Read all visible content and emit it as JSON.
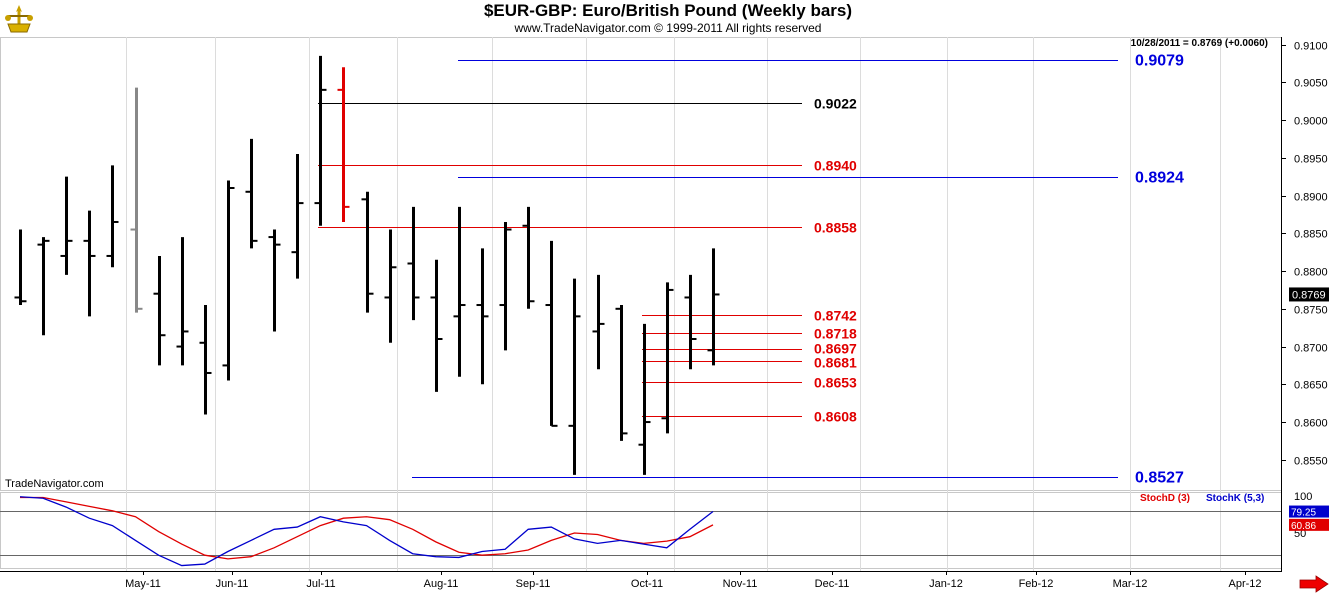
{
  "header": {
    "title": "$EUR-GBP:  Euro/British Pound  (Weekly bars)",
    "subtitle": "www.TradeNavigator.com © 1999-2011 All rights reserved",
    "quote": "10/28/2011 = 0.8769 (+0.0060)",
    "watermark": "TradeNavigator.com"
  },
  "chart_data": [
    {
      "type": "ohlc",
      "title": "$EUR-GBP:  Euro/British Pound  (Weekly bars)",
      "ylim": [
        0.851,
        0.911
      ],
      "y_ticks": [
        0.91,
        0.905,
        0.9,
        0.895,
        0.89,
        0.885,
        0.88,
        0.875,
        0.87,
        0.865,
        0.86,
        0.855
      ],
      "x_months": [
        "May-11",
        "Jun-11",
        "Jul-11",
        "Aug-11",
        "Sep-11",
        "Oct-11",
        "Nov-11",
        "Dec-11",
        "Jan-12",
        "Feb-12",
        "Mar-12",
        "Apr-12"
      ],
      "last_value": "0.8769",
      "bars": [
        {
          "o": 0.8765,
          "h": 0.8855,
          "l": 0.8755,
          "c": 0.876,
          "color": "#000000"
        },
        {
          "o": 0.8835,
          "h": 0.8845,
          "l": 0.8715,
          "c": 0.884,
          "color": "#000000"
        },
        {
          "o": 0.882,
          "h": 0.8925,
          "l": 0.8795,
          "c": 0.884,
          "color": "#000000"
        },
        {
          "o": 0.884,
          "h": 0.888,
          "l": 0.874,
          "c": 0.882,
          "color": "#000000"
        },
        {
          "o": 0.882,
          "h": 0.894,
          "l": 0.8805,
          "c": 0.8865,
          "color": "#000000"
        },
        {
          "o": 0.8855,
          "h": 0.9043,
          "l": 0.8745,
          "c": 0.875,
          "color": "#888888"
        },
        {
          "o": 0.877,
          "h": 0.882,
          "l": 0.8675,
          "c": 0.8715,
          "color": "#000000"
        },
        {
          "o": 0.87,
          "h": 0.8845,
          "l": 0.8675,
          "c": 0.872,
          "color": "#000000"
        },
        {
          "o": 0.8705,
          "h": 0.8755,
          "l": 0.861,
          "c": 0.8665,
          "color": "#000000"
        },
        {
          "o": 0.8675,
          "h": 0.892,
          "l": 0.8655,
          "c": 0.891,
          "color": "#000000"
        },
        {
          "o": 0.8905,
          "h": 0.8975,
          "l": 0.883,
          "c": 0.884,
          "color": "#000000"
        },
        {
          "o": 0.8845,
          "h": 0.8855,
          "l": 0.872,
          "c": 0.8835,
          "color": "#000000"
        },
        {
          "o": 0.8825,
          "h": 0.8955,
          "l": 0.879,
          "c": 0.889,
          "color": "#000000"
        },
        {
          "o": 0.889,
          "h": 0.9085,
          "l": 0.886,
          "c": 0.904,
          "color": "#000000"
        },
        {
          "o": 0.904,
          "h": 0.907,
          "l": 0.8865,
          "c": 0.8885,
          "color": "#e00000"
        },
        {
          "o": 0.8895,
          "h": 0.8905,
          "l": 0.8745,
          "c": 0.877,
          "color": "#000000"
        },
        {
          "o": 0.8765,
          "h": 0.8855,
          "l": 0.8705,
          "c": 0.8805,
          "color": "#000000"
        },
        {
          "o": 0.881,
          "h": 0.8885,
          "l": 0.8735,
          "c": 0.8765,
          "color": "#000000"
        },
        {
          "o": 0.8765,
          "h": 0.8815,
          "l": 0.864,
          "c": 0.871,
          "color": "#000000"
        },
        {
          "o": 0.874,
          "h": 0.8885,
          "l": 0.866,
          "c": 0.8755,
          "color": "#000000"
        },
        {
          "o": 0.8755,
          "h": 0.883,
          "l": 0.865,
          "c": 0.874,
          "color": "#000000"
        },
        {
          "o": 0.8755,
          "h": 0.8865,
          "l": 0.8695,
          "c": 0.8855,
          "color": "#000000"
        },
        {
          "o": 0.886,
          "h": 0.8885,
          "l": 0.875,
          "c": 0.876,
          "color": "#000000"
        },
        {
          "o": 0.8755,
          "h": 0.884,
          "l": 0.8595,
          "c": 0.8595,
          "color": "#000000"
        },
        {
          "o": 0.8595,
          "h": 0.879,
          "l": 0.853,
          "c": 0.874,
          "color": "#000000"
        },
        {
          "o": 0.872,
          "h": 0.8795,
          "l": 0.867,
          "c": 0.873,
          "color": "#000000"
        },
        {
          "o": 0.875,
          "h": 0.8755,
          "l": 0.8575,
          "c": 0.8585,
          "color": "#000000"
        },
        {
          "o": 0.857,
          "h": 0.873,
          "l": 0.853,
          "c": 0.86,
          "color": "#000000"
        },
        {
          "o": 0.8605,
          "h": 0.8785,
          "l": 0.8585,
          "c": 0.8775,
          "color": "#000000"
        },
        {
          "o": 0.8765,
          "h": 0.8795,
          "l": 0.867,
          "c": 0.871,
          "color": "#000000"
        },
        {
          "o": 0.8695,
          "h": 0.883,
          "l": 0.8675,
          "c": 0.8769,
          "color": "#000000"
        }
      ],
      "levels": [
        {
          "label": "0.9079",
          "value": 0.9079,
          "color": "#0000dd"
        },
        {
          "label": "0.9022",
          "value": 0.9022,
          "color": "#000000"
        },
        {
          "label": "0.8940",
          "value": 0.894,
          "color": "#e00000"
        },
        {
          "label": "0.8924",
          "value": 0.8924,
          "color": "#0000dd"
        },
        {
          "label": "0.8858",
          "value": 0.8858,
          "color": "#e00000"
        },
        {
          "label": "0.8742",
          "value": 0.8742,
          "color": "#e00000"
        },
        {
          "label": "0.8718",
          "value": 0.8718,
          "color": "#e00000"
        },
        {
          "label": "0.8697",
          "value": 0.8697,
          "color": "#e00000"
        },
        {
          "label": "0.8681",
          "value": 0.8681,
          "color": "#e00000"
        },
        {
          "label": "0.8653",
          "value": 0.8653,
          "color": "#e00000"
        },
        {
          "label": "0.8608",
          "value": 0.8608,
          "color": "#e00000"
        },
        {
          "label": "0.8527",
          "value": 0.8527,
          "color": "#0000dd"
        }
      ]
    },
    {
      "type": "line",
      "ylim": [
        0,
        100
      ],
      "y_ticks": [
        100,
        50
      ],
      "overbought": 80,
      "oversold": 20,
      "series": [
        {
          "name": "StochD (3)",
          "color": "#e00000",
          "last_label": "60.86",
          "values": [
            98,
            98,
            92,
            86,
            80,
            72,
            52,
            35,
            20,
            15,
            18,
            30,
            45,
            60,
            70,
            72,
            68,
            55,
            38,
            24,
            20,
            22,
            27,
            40,
            50,
            48,
            40,
            36,
            39,
            45,
            61
          ]
        },
        {
          "name": "StochK (5,3)",
          "color": "#0000cc",
          "last_label": "79.25",
          "values": [
            99,
            97,
            85,
            70,
            60,
            40,
            20,
            6,
            8,
            25,
            40,
            55,
            58,
            72,
            65,
            60,
            40,
            22,
            18,
            17,
            25,
            28,
            55,
            58,
            42,
            36,
            40,
            35,
            30,
            55,
            79
          ]
        }
      ]
    }
  ]
}
